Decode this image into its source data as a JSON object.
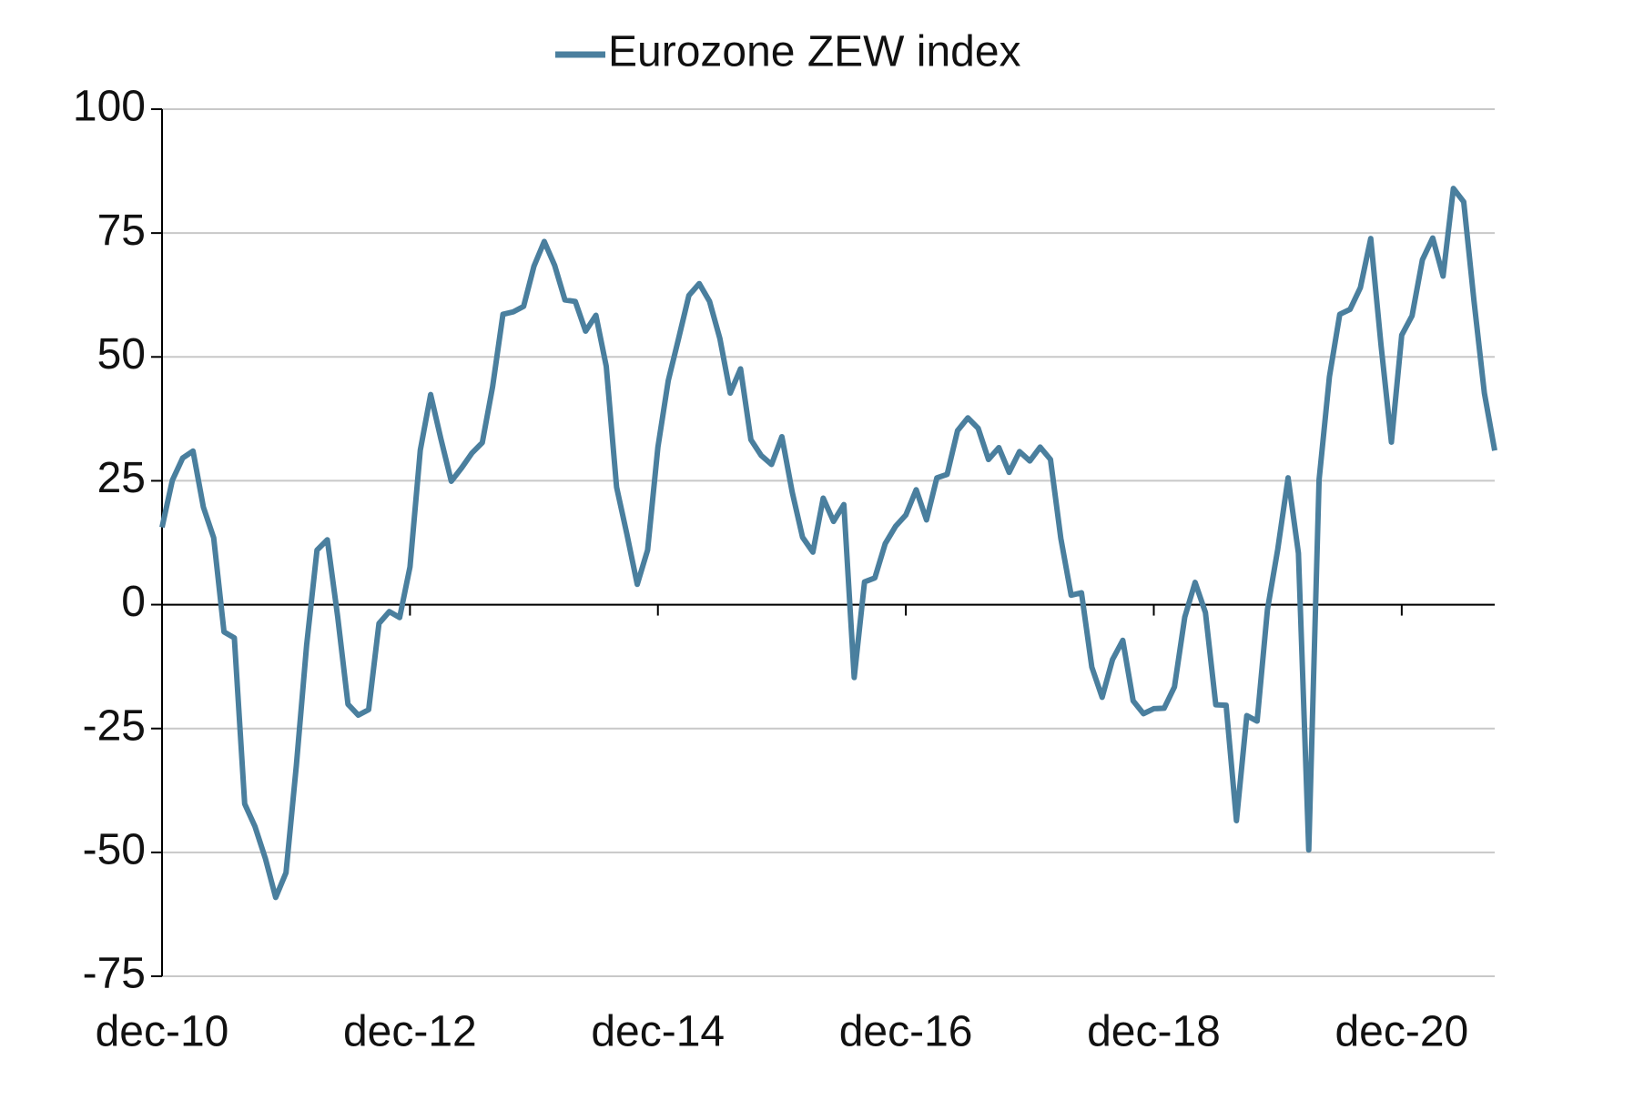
{
  "chart_data": {
    "type": "line",
    "categories": [
      "dec-10",
      null,
      null,
      null,
      null,
      null,
      null,
      null,
      null,
      null,
      null,
      null,
      null,
      null,
      null,
      null,
      null,
      null,
      null,
      null,
      null,
      null,
      null,
      null,
      "dec-12",
      null,
      null,
      null,
      null,
      null,
      null,
      null,
      null,
      null,
      null,
      null,
      null,
      null,
      null,
      null,
      null,
      null,
      null,
      null,
      null,
      null,
      null,
      null,
      "dec-14",
      null,
      null,
      null,
      null,
      null,
      null,
      null,
      null,
      null,
      null,
      null,
      null,
      null,
      null,
      null,
      null,
      null,
      null,
      null,
      null,
      null,
      null,
      null,
      "dec-16",
      null,
      null,
      null,
      null,
      null,
      null,
      null,
      null,
      null,
      null,
      null,
      null,
      null,
      null,
      null,
      null,
      null,
      null,
      null,
      null,
      null,
      null,
      null,
      "dec-18",
      null,
      null,
      null,
      null,
      null,
      null,
      null,
      null,
      null,
      null,
      null,
      null,
      null,
      null,
      null,
      null,
      null,
      null,
      null,
      null,
      null,
      null,
      null,
      "dec-20",
      null,
      null,
      null,
      null,
      null,
      null,
      null,
      null,
      null
    ],
    "series": [
      {
        "name": "Eurozone ZEW index",
        "color": "#4a7f9e",
        "values": [
          15.6,
          25.1,
          29.6,
          31.0,
          19.7,
          13.5,
          -5.5,
          -6.7,
          -40.2,
          -44.8,
          -51.2,
          -59.1,
          -54.1,
          -32.5,
          -8.1,
          11.0,
          13.1,
          -2.4,
          -20.1,
          -22.3,
          -21.2,
          -3.8,
          -1.4,
          -2.6,
          7.6,
          31.2,
          42.4,
          33.4,
          24.9,
          27.6,
          30.6,
          32.7,
          44.0,
          58.6,
          59.1,
          60.2,
          68.3,
          73.3,
          68.5,
          61.5,
          61.2,
          55.2,
          58.4,
          48.1,
          23.7,
          14.2,
          4.1,
          11.0,
          31.8,
          45.2,
          53.7,
          62.4,
          64.8,
          61.2,
          53.7,
          42.7,
          47.6,
          33.3,
          30.1,
          28.3,
          33.9,
          22.7,
          13.6,
          10.6,
          21.5,
          16.8,
          20.2,
          -14.7,
          4.6,
          5.4,
          12.3,
          15.8,
          18.1,
          23.2,
          17.1,
          25.6,
          26.3,
          35.1,
          37.7,
          35.6,
          29.3,
          31.7,
          26.7,
          30.9,
          29.0,
          31.8,
          29.3,
          13.4,
          1.9,
          2.4,
          -12.6,
          -18.7,
          -11.1,
          -7.2,
          -19.4,
          -22.0,
          -21.0,
          -20.9,
          -16.6,
          -2.5,
          4.5,
          -1.6,
          -20.2,
          -20.3,
          -43.6,
          -22.4,
          -23.5,
          -1.0,
          11.2,
          25.6,
          10.4,
          -49.5,
          25.2,
          46.0,
          58.6,
          59.6,
          64.0,
          73.9,
          52.3,
          32.8,
          54.4,
          58.3,
          69.6,
          74.0,
          66.3,
          84.0,
          81.3,
          61.2,
          42.7,
          31.1
        ]
      }
    ],
    "ylim": [
      -75,
      100
    ],
    "yticks": [
      -75,
      -50,
      -25,
      0,
      25,
      50,
      75,
      100
    ],
    "grid": true,
    "legend": "top"
  }
}
